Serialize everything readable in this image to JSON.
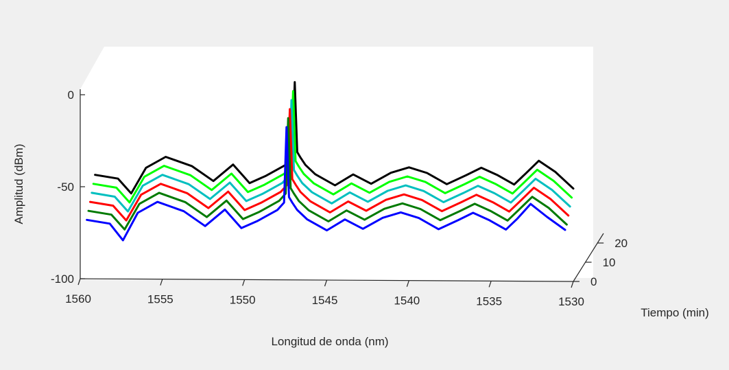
{
  "chart_data": {
    "type": "line",
    "view": "3d-waterfall",
    "xlabel": "Longitud de onda (nm)",
    "ylabel": "Amplitud (dBm)",
    "zlabel": "Tiempo (min)",
    "xlim": [
      1530,
      1560
    ],
    "x_reversed": true,
    "ylim": [
      -100,
      10
    ],
    "zlim": [
      0,
      25
    ],
    "xticks": [
      "1560",
      "1555",
      "1550",
      "1545",
      "1540",
      "1535",
      "1530"
    ],
    "yticks": [
      "0",
      "-50",
      "-100"
    ],
    "zticks": [
      "0",
      "10",
      "20"
    ],
    "series": [
      {
        "color": "#0000ff",
        "time": 0,
        "x": [
          1530.5,
          1531.6,
          1532.6,
          1533.4,
          1534.1,
          1535.1,
          1536.1,
          1537.0,
          1538.2,
          1539.4,
          1540.5,
          1541.6,
          1542.8,
          1543.9,
          1545.0,
          1546.2,
          1546.8,
          1547.1,
          1547.3,
          1547.45,
          1547.6,
          1548.0,
          1549.2,
          1550.2,
          1551.2,
          1552.4,
          1553.7,
          1555.3,
          1556.5,
          1557.4,
          1558.2,
          1559.6
        ],
        "y": [
          -72,
          -65,
          -58,
          -66,
          -72,
          -67,
          -63,
          -67,
          -72,
          -66,
          -63,
          -66,
          -72,
          -67,
          -73,
          -67,
          -62,
          -58,
          -55,
          -17,
          -58,
          -62,
          -68,
          -72,
          -62,
          -71,
          -63,
          -58,
          -64,
          -79,
          -70,
          -68
        ]
      },
      {
        "color": "#007a00",
        "time": 4,
        "x": [
          1530.5,
          1531.6,
          1532.6,
          1533.4,
          1534.1,
          1535.1,
          1536.1,
          1537.0,
          1538.2,
          1539.4,
          1540.5,
          1541.6,
          1542.8,
          1543.9,
          1545.0,
          1546.2,
          1546.8,
          1547.1,
          1547.3,
          1547.45,
          1547.6,
          1548.0,
          1549.2,
          1550.2,
          1551.2,
          1552.4,
          1553.7,
          1555.3,
          1556.5,
          1557.4,
          1558.2,
          1559.6
        ],
        "y": [
          -70,
          -61,
          -55,
          -62,
          -68,
          -63,
          -59,
          -63,
          -68,
          -62,
          -59,
          -62,
          -68,
          -63,
          -69,
          -63,
          -58,
          -54,
          -51,
          -13,
          -54,
          -58,
          -64,
          -68,
          -58,
          -67,
          -59,
          -54,
          -60,
          -74,
          -66,
          -64
        ]
      },
      {
        "color": "#ff0000",
        "time": 8,
        "x": [
          1530.5,
          1531.6,
          1532.6,
          1533.4,
          1534.1,
          1535.1,
          1536.1,
          1537.0,
          1538.2,
          1539.4,
          1540.5,
          1541.6,
          1542.8,
          1543.9,
          1545.0,
          1546.2,
          1546.8,
          1547.1,
          1547.3,
          1547.45,
          1547.6,
          1548.0,
          1549.2,
          1550.2,
          1551.2,
          1552.4,
          1553.7,
          1555.3,
          1556.5,
          1557.4,
          1558.2,
          1559.6
        ],
        "y": [
          -66,
          -57,
          -51,
          -58,
          -64,
          -59,
          -55,
          -59,
          -64,
          -58,
          -55,
          -58,
          -64,
          -59,
          -65,
          -59,
          -54,
          -50,
          -47,
          -9,
          -50,
          -54,
          -60,
          -64,
          -54,
          -63,
          -55,
          -50,
          -56,
          -70,
          -62,
          -60
        ]
      },
      {
        "color": "#00bfbf",
        "time": 12,
        "x": [
          1530.5,
          1531.6,
          1532.6,
          1533.4,
          1534.1,
          1535.1,
          1536.1,
          1537.0,
          1538.2,
          1539.4,
          1540.5,
          1541.6,
          1542.8,
          1543.9,
          1545.0,
          1546.2,
          1546.8,
          1547.1,
          1547.3,
          1547.45,
          1547.6,
          1548.0,
          1549.2,
          1550.2,
          1551.2,
          1552.4,
          1553.7,
          1555.3,
          1556.5,
          1557.4,
          1558.2,
          1559.6
        ],
        "y": [
          -62,
          -53,
          -47,
          -54,
          -60,
          -55,
          -51,
          -55,
          -60,
          -54,
          -51,
          -54,
          -60,
          -55,
          -61,
          -55,
          -50,
          -46,
          -43,
          -5,
          -46,
          -50,
          -56,
          -60,
          -50,
          -59,
          -51,
          -46,
          -52,
          -66,
          -58,
          -56
        ]
      },
      {
        "color": "#00ff00",
        "time": 16,
        "x": [
          1530.5,
          1531.6,
          1532.6,
          1533.4,
          1534.1,
          1535.1,
          1536.1,
          1537.0,
          1538.2,
          1539.4,
          1540.5,
          1541.6,
          1542.8,
          1543.9,
          1545.0,
          1546.2,
          1546.8,
          1547.1,
          1547.3,
          1547.45,
          1547.6,
          1548.0,
          1549.2,
          1550.2,
          1551.2,
          1552.4,
          1553.7,
          1555.3,
          1556.5,
          1557.4,
          1558.2,
          1559.6
        ],
        "y": [
          -58,
          -49,
          -43,
          -50,
          -56,
          -51,
          -47,
          -51,
          -56,
          -50,
          -47,
          -50,
          -56,
          -51,
          -57,
          -51,
          -46,
          -42,
          -39,
          -1,
          -42,
          -46,
          -52,
          -56,
          -46,
          -55,
          -47,
          -42,
          -48,
          -62,
          -54,
          -52
        ]
      },
      {
        "color": "#000000",
        "time": 20,
        "x": [
          1530.5,
          1531.6,
          1532.6,
          1533.4,
          1534.1,
          1535.1,
          1536.1,
          1537.0,
          1538.2,
          1539.4,
          1540.5,
          1541.6,
          1542.8,
          1543.9,
          1545.0,
          1546.2,
          1546.8,
          1547.1,
          1547.3,
          1547.45,
          1547.6,
          1548.0,
          1549.2,
          1550.2,
          1551.2,
          1552.4,
          1553.7,
          1555.3,
          1556.5,
          1557.4,
          1558.2,
          1559.6
        ],
        "y": [
          -54,
          -45,
          -39,
          -46,
          -52,
          -47,
          -43,
          -47,
          -52,
          -46,
          -43,
          -46,
          -52,
          -47,
          -53,
          -47,
          -42,
          -38,
          -35,
          3,
          -38,
          -42,
          -48,
          -52,
          -42,
          -51,
          -43,
          -38,
          -44,
          -58,
          -50,
          -48
        ]
      }
    ]
  }
}
